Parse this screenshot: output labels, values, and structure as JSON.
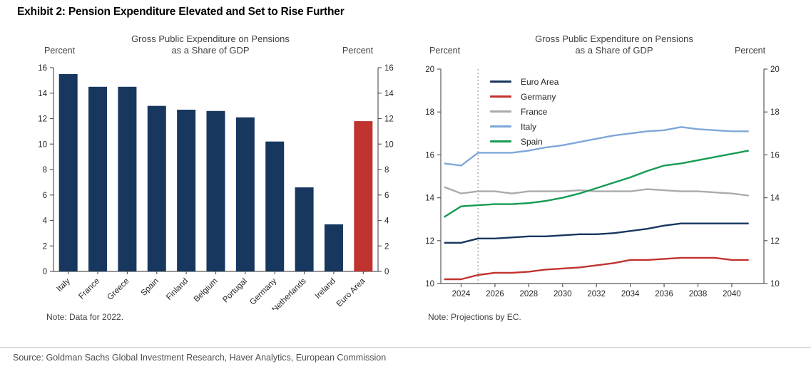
{
  "exhibit_title": "Exhibit 2: Pension Expenditure Elevated and Set to Rise Further",
  "source_line": "Source: Goldman Sachs Global Investment Research, Haver Analytics, European Commission",
  "colors": {
    "navy": "#17375E",
    "red": "#C0332F",
    "gray": "#ABABAB",
    "light_blue": "#7FA7D9",
    "green": "#169B52",
    "axis": "#595959",
    "text": "#404040",
    "dashed_line": "#808080"
  },
  "chart_data": [
    {
      "type": "bar",
      "title_lines": [
        "Gross Public Expenditure on Pensions",
        "as a Share of GDP"
      ],
      "left_axis_label": "Percent",
      "right_axis_label": "Percent",
      "categories": [
        "Italy",
        "France",
        "Greece",
        "Spain",
        "Finland",
        "Belgium",
        "Portugal",
        "Germany",
        "Netherlands",
        "Ireland",
        "Euro Area"
      ],
      "values": [
        15.5,
        14.5,
        14.5,
        13.0,
        12.7,
        12.6,
        12.1,
        10.2,
        6.6,
        3.7,
        11.8
      ],
      "highlight_category": "Euro Area",
      "bar_color": "#17375E",
      "highlight_color": "#C0332F",
      "ylim": [
        0,
        16
      ],
      "yticks": [
        0,
        2,
        4,
        6,
        8,
        10,
        12,
        14,
        16
      ],
      "grid": false,
      "note": "Note: Data for 2022."
    },
    {
      "type": "line",
      "title_lines": [
        "Gross Public Expenditure on Pensions",
        "as a Share of GDP"
      ],
      "left_axis_label": "Percent",
      "right_axis_label": "Percent",
      "x": [
        2023,
        2024,
        2025,
        2026,
        2027,
        2028,
        2029,
        2030,
        2031,
        2032,
        2033,
        2034,
        2035,
        2036,
        2037,
        2038,
        2039,
        2040,
        2041
      ],
      "series": [
        {
          "name": "Euro Area",
          "color": "#17375E",
          "values": [
            11.9,
            11.9,
            12.1,
            12.1,
            12.15,
            12.2,
            12.2,
            12.25,
            12.3,
            12.3,
            12.35,
            12.45,
            12.55,
            12.7,
            12.8,
            12.8,
            12.8,
            12.8,
            12.8
          ]
        },
        {
          "name": "Germany",
          "color": "#C0332F",
          "values": [
            10.2,
            10.2,
            10.4,
            10.5,
            10.5,
            10.55,
            10.65,
            10.7,
            10.75,
            10.85,
            10.95,
            11.1,
            11.1,
            11.15,
            11.2,
            11.2,
            11.2,
            11.1,
            11.1
          ]
        },
        {
          "name": "France",
          "color": "#ABABAB",
          "values": [
            14.5,
            14.2,
            14.3,
            14.3,
            14.2,
            14.3,
            14.3,
            14.3,
            14.35,
            14.3,
            14.3,
            14.3,
            14.4,
            14.35,
            14.3,
            14.3,
            14.25,
            14.2,
            14.1
          ]
        },
        {
          "name": "Italy",
          "color": "#7FA7D9",
          "values": [
            15.6,
            15.5,
            16.1,
            16.1,
            16.1,
            16.2,
            16.35,
            16.45,
            16.6,
            16.75,
            16.9,
            17.0,
            17.1,
            17.15,
            17.3,
            17.2,
            17.15,
            17.1,
            17.1
          ]
        },
        {
          "name": "Spain",
          "color": "#169B52",
          "values": [
            13.1,
            13.6,
            13.65,
            13.7,
            13.7,
            13.75,
            13.85,
            14.0,
            14.2,
            14.45,
            14.7,
            14.95,
            15.25,
            15.5,
            15.6,
            15.75,
            15.9,
            16.05,
            16.2
          ]
        }
      ],
      "ylim": [
        10,
        20
      ],
      "yticks": [
        10,
        12,
        14,
        16,
        18,
        20
      ],
      "xticks": [
        2024,
        2026,
        2028,
        2030,
        2032,
        2034,
        2036,
        2038,
        2040
      ],
      "x_domain": [
        2022.8,
        2041.9
      ],
      "dashed_vline_x": 2025,
      "grid": false,
      "legend_position": "top-left-inside",
      "note": "Note: Projections by EC."
    }
  ]
}
